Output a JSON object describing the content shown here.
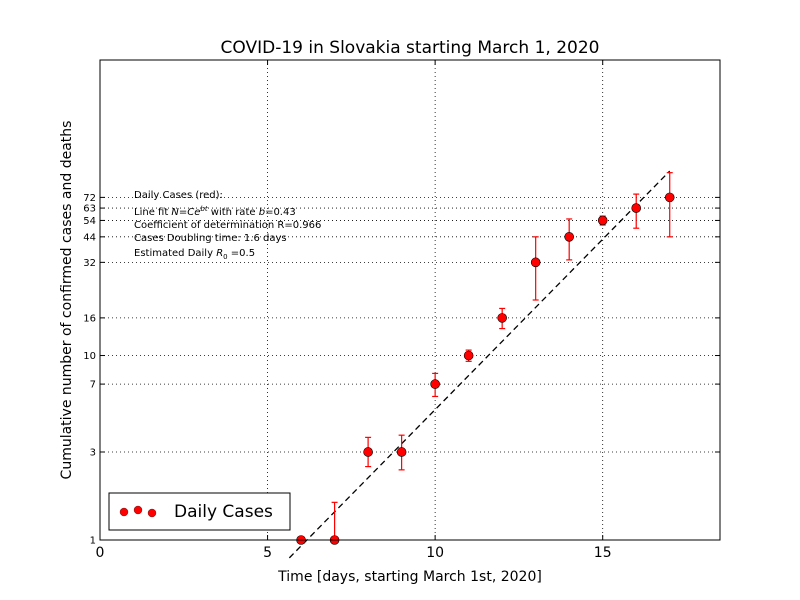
{
  "chart_data": {
    "type": "scatter",
    "title": "COVID-19 in Slovakia starting March 1, 2020",
    "xlabel": "Time [days, starting March 1st, 2020]",
    "ylabel": "Cumulative number of confirmed cases and deaths",
    "yscale": "log",
    "xlim": [
      0,
      18.5
    ],
    "ylim": [
      1,
      400
    ],
    "x_ticks": [
      0,
      5,
      10,
      15
    ],
    "y_ticks": [
      1,
      3,
      7,
      10,
      16,
      32,
      44,
      54,
      63,
      72
    ],
    "grid": "dotted",
    "legend_position": "bottom-left",
    "series": [
      {
        "name": "Daily Cases",
        "color": "#ff0000",
        "marker": "circle",
        "points": [
          {
            "x": 6,
            "y": 1,
            "err_low": 1,
            "err_high": 1
          },
          {
            "x": 7,
            "y": 1,
            "err_low": 1,
            "err_high": 1.6
          },
          {
            "x": 8,
            "y": 3,
            "err_low": 2.5,
            "err_high": 3.6
          },
          {
            "x": 9,
            "y": 3,
            "err_low": 2.4,
            "err_high": 3.7
          },
          {
            "x": 10,
            "y": 7,
            "err_low": 6,
            "err_high": 8
          },
          {
            "x": 11,
            "y": 10,
            "err_low": 9.3,
            "err_high": 10.7
          },
          {
            "x": 12,
            "y": 16,
            "err_low": 14,
            "err_high": 18
          },
          {
            "x": 13,
            "y": 32,
            "err_low": 20,
            "err_high": 44
          },
          {
            "x": 14,
            "y": 44,
            "err_low": 33,
            "err_high": 55
          },
          {
            "x": 15,
            "y": 54,
            "err_low": 51,
            "err_high": 57
          },
          {
            "x": 16,
            "y": 63,
            "err_low": 49,
            "err_high": 75
          },
          {
            "x": 17,
            "y": 72,
            "err_low": 44,
            "err_high": 98
          }
        ]
      }
    ],
    "fit_line": {
      "style": "dashed",
      "color": "#000000",
      "x": [
        5.65,
        17
      ],
      "y": [
        0.8,
        100
      ]
    },
    "annotation": {
      "lines": [
        "Daily Cases (red):",
        "Line fit N=Ce^bt with rate b=0.43",
        "Coefficient of determination R=0.966",
        "Cases Doubling time: 1.6 days",
        "Estimated Daily R₀ =0.5"
      ],
      "line_fit_prefix": "Line fit ",
      "line_fit_formula": "N=Ce",
      "line_fit_exponent": "bt",
      "line_fit_rate_text": " with rate ",
      "line_fit_rate_var": "b",
      "line_fit_rate_value": "=0.43",
      "r0_prefix": "Estimated Daily ",
      "r0_var": "R",
      "r0_sub": "0",
      "r0_value": " =0.5"
    }
  }
}
